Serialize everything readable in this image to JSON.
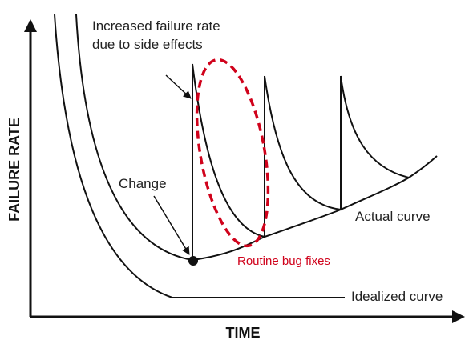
{
  "y_axis_label": "FAILURE RATE",
  "x_axis_label": "TIME",
  "annotations": {
    "side_effects": [
      "Increased failure rate",
      "due to side effects"
    ],
    "change": "Change",
    "actual_curve": "Actual curve",
    "idealized_curve": "Idealized curve",
    "bug_fixes": "Routine bug fixes"
  }
}
